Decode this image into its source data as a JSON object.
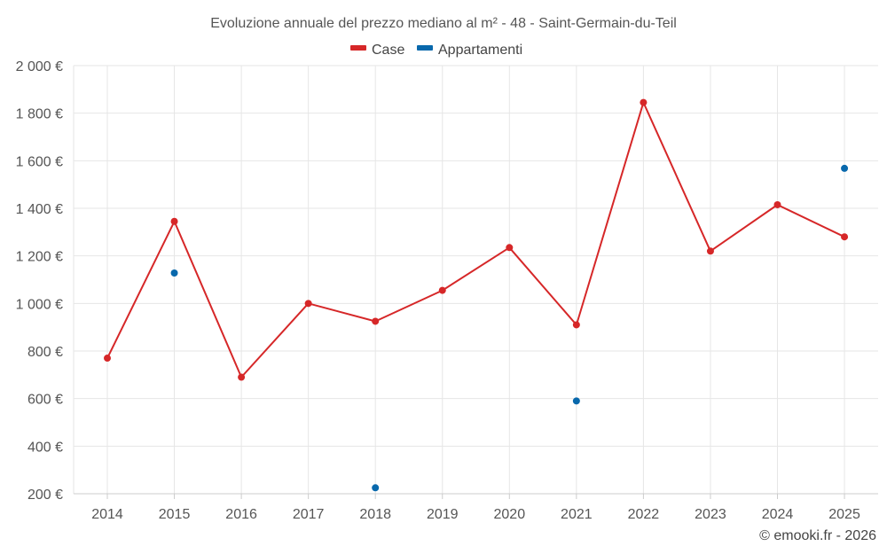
{
  "chart_data": {
    "type": "line",
    "title": "Evoluzione annuale del prezzo mediano al m² - 48 - Saint-Germain-du-Teil",
    "xlabel": "",
    "ylabel": "",
    "categories": [
      "2014",
      "2015",
      "2016",
      "2017",
      "2018",
      "2019",
      "2020",
      "2021",
      "2022",
      "2023",
      "2024",
      "2025"
    ],
    "ylim": [
      200,
      2000
    ],
    "yticks": [
      200,
      400,
      600,
      800,
      1000,
      1200,
      1400,
      1600,
      1800,
      2000
    ],
    "ytick_labels": [
      "200 €",
      "400 €",
      "600 €",
      "800 €",
      "1 000 €",
      "1 200 €",
      "1 400 €",
      "1 600 €",
      "1 800 €",
      "2 000 €"
    ],
    "grid": true,
    "legend_position": "top-center",
    "series": [
      {
        "name": "Case",
        "color": "#d62728",
        "values": [
          770,
          1345,
          690,
          1000,
          925,
          1055,
          1235,
          910,
          1845,
          1220,
          1415,
          1280
        ]
      },
      {
        "name": "Appartamenti",
        "color": "#0868ac",
        "values": [
          null,
          1128,
          null,
          null,
          225,
          null,
          null,
          590,
          null,
          null,
          null,
          1568
        ]
      }
    ]
  },
  "credit": "© emooki.fr - 2026"
}
